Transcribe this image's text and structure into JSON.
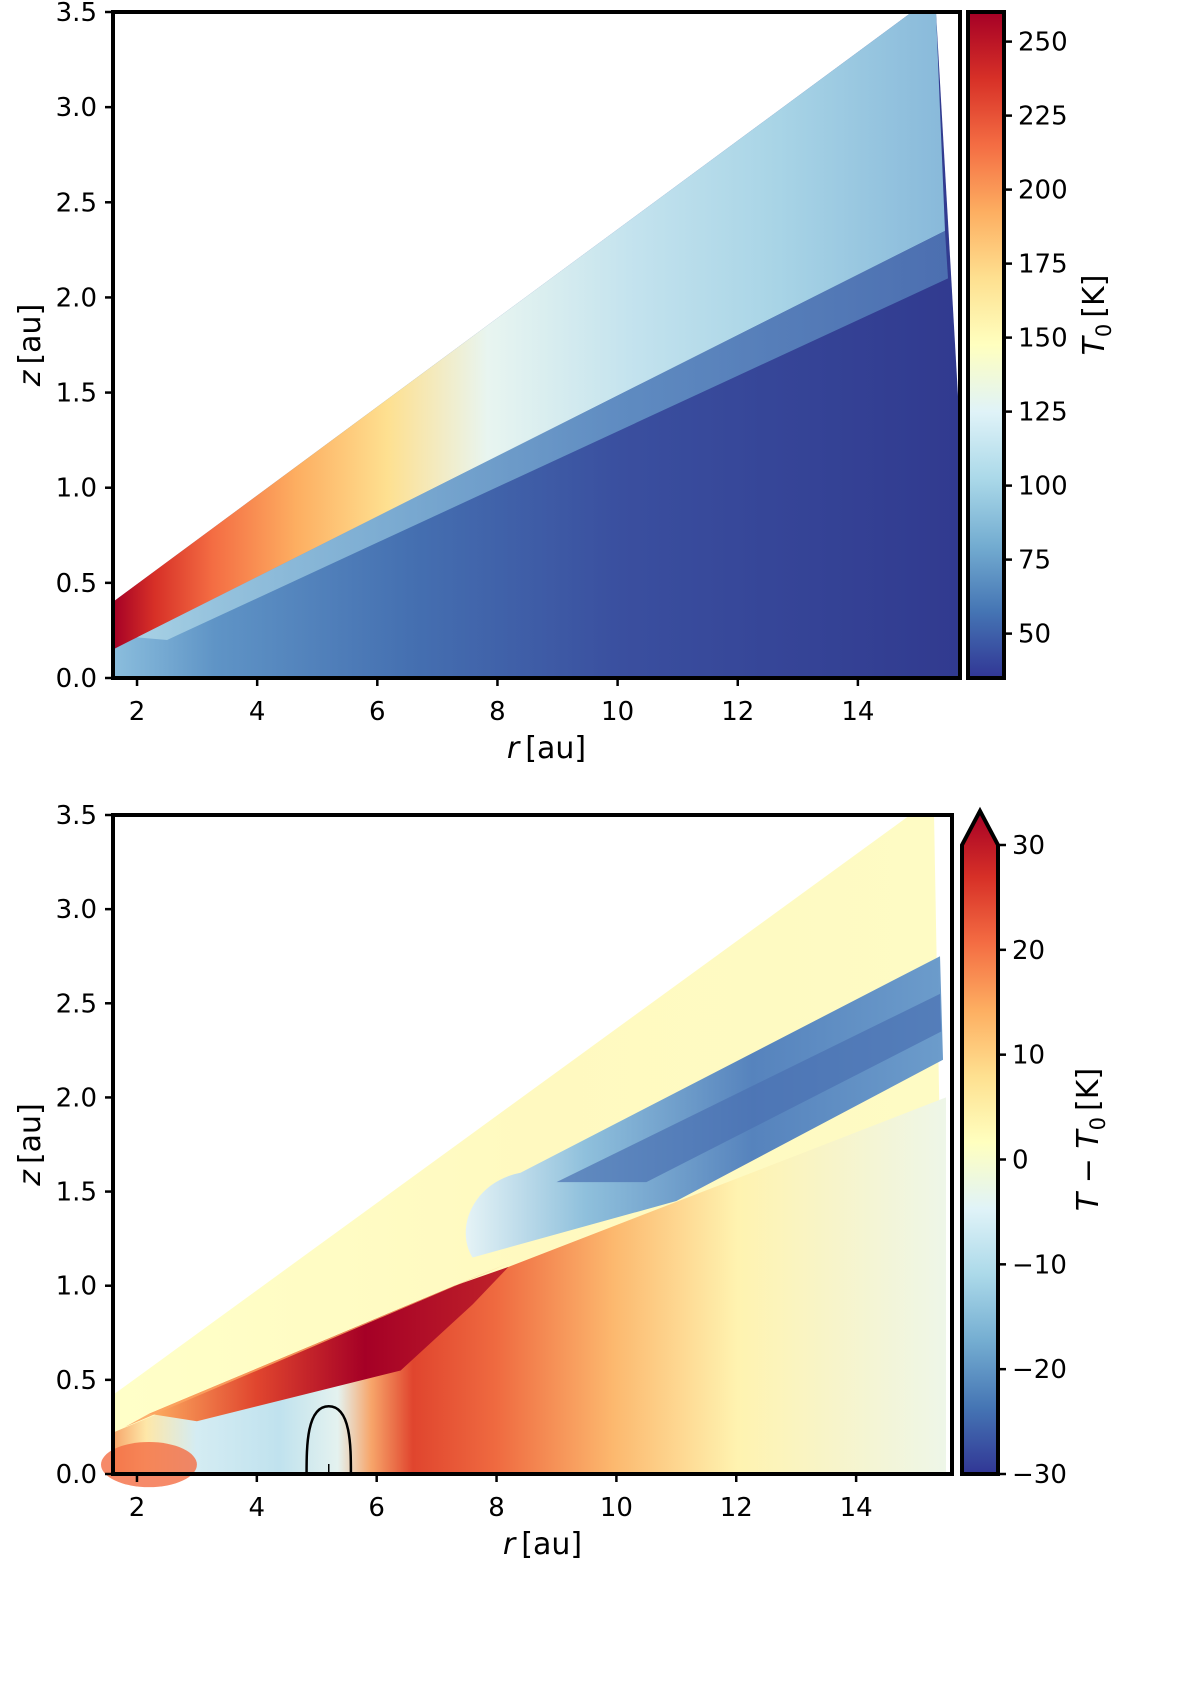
{
  "colors": {
    "rdylbu_r": [
      "#313695",
      "#4575b4",
      "#74add1",
      "#abd9e9",
      "#e0f3f8",
      "#ffffbf",
      "#fee090",
      "#fdae61",
      "#f46d43",
      "#d73027",
      "#a50026"
    ]
  },
  "chart_data": [
    {
      "type": "heatmap",
      "id": "top",
      "xlabel_italic": "r",
      "xlabel_unit": "[au]",
      "ylabel_italic": "z",
      "ylabel_unit": "[au]",
      "xlim": [
        1.6,
        15.7
      ],
      "ylim": [
        0.0,
        3.5
      ],
      "x_ticks": [
        2,
        4,
        6,
        8,
        10,
        12,
        14
      ],
      "y_ticks": [
        0.0,
        0.5,
        1.0,
        1.5,
        2.0,
        2.5,
        3.0,
        3.5
      ],
      "y_tick_labels": [
        "0.0",
        "0.5",
        "1.0",
        "1.5",
        "2.0",
        "2.5",
        "3.0",
        "3.5"
      ],
      "x_tick_labels": [
        "2",
        "4",
        "6",
        "8",
        "10",
        "12",
        "14"
      ],
      "colorbar": {
        "label_main": "T",
        "label_sub": "0",
        "label_unit": "[K]",
        "range": [
          35,
          260
        ],
        "ticks": [
          50,
          75,
          100,
          125,
          150,
          175,
          200,
          225,
          250
        ],
        "tick_labels": [
          "50",
          "75",
          "100",
          "125",
          "150",
          "175",
          "200",
          "225",
          "250"
        ],
        "extend": "neither"
      },
      "domain": {
        "outer_radius_top": 15.3,
        "outer_radius_mid": 15.7,
        "outer_radius_bottom": 15.7,
        "upper_boundary": [
          [
            1.6,
            0.4
          ],
          [
            14.9,
            3.5
          ]
        ]
      },
      "field_description": "Disk atmosphere hot near star (~260 K) cooling to ~100 K outward; cold midplane ~40-60 K"
    },
    {
      "type": "heatmap",
      "id": "bottom",
      "xlabel_italic": "r",
      "xlabel_unit": "[au]",
      "ylabel_italic": "z",
      "ylabel_unit": "[au]",
      "xlim": [
        1.6,
        15.6
      ],
      "ylim": [
        0.0,
        3.5
      ],
      "x_ticks": [
        2,
        4,
        6,
        8,
        10,
        12,
        14
      ],
      "y_ticks": [
        0.0,
        0.5,
        1.0,
        1.5,
        2.0,
        2.5,
        3.0,
        3.5
      ],
      "y_tick_labels": [
        "0.0",
        "0.5",
        "1.0",
        "1.5",
        "2.0",
        "2.5",
        "3.0",
        "3.5"
      ],
      "x_tick_labels": [
        "2",
        "4",
        "6",
        "8",
        "10",
        "12",
        "14"
      ],
      "colorbar": {
        "label_main": "T − T",
        "label_sub": "0",
        "label_unit": "[K]",
        "range": [
          -30,
          30
        ],
        "ticks": [
          -30,
          -20,
          -10,
          0,
          10,
          20,
          30
        ],
        "tick_labels": [
          "−30",
          "−20",
          "−10",
          "0",
          "10",
          "20",
          "30"
        ],
        "extend": "max"
      },
      "domain": {
        "outer_radius_top": 15.3,
        "outer_radius_bottom": 15.5,
        "upper_boundary": [
          [
            1.6,
            0.42
          ],
          [
            14.9,
            3.5
          ]
        ]
      },
      "contour": {
        "r_center": 5.2,
        "r_half_width": 0.37,
        "z_top": 0.36
      },
      "field_description": "Temperature difference: warm band above ~6-8 au midplane up to ~+30 K, cooler shadowed region (-10 to -25 K) in upper atmosphere beyond ~6 au, slight cooling near planet at r~4-5 au"
    }
  ]
}
